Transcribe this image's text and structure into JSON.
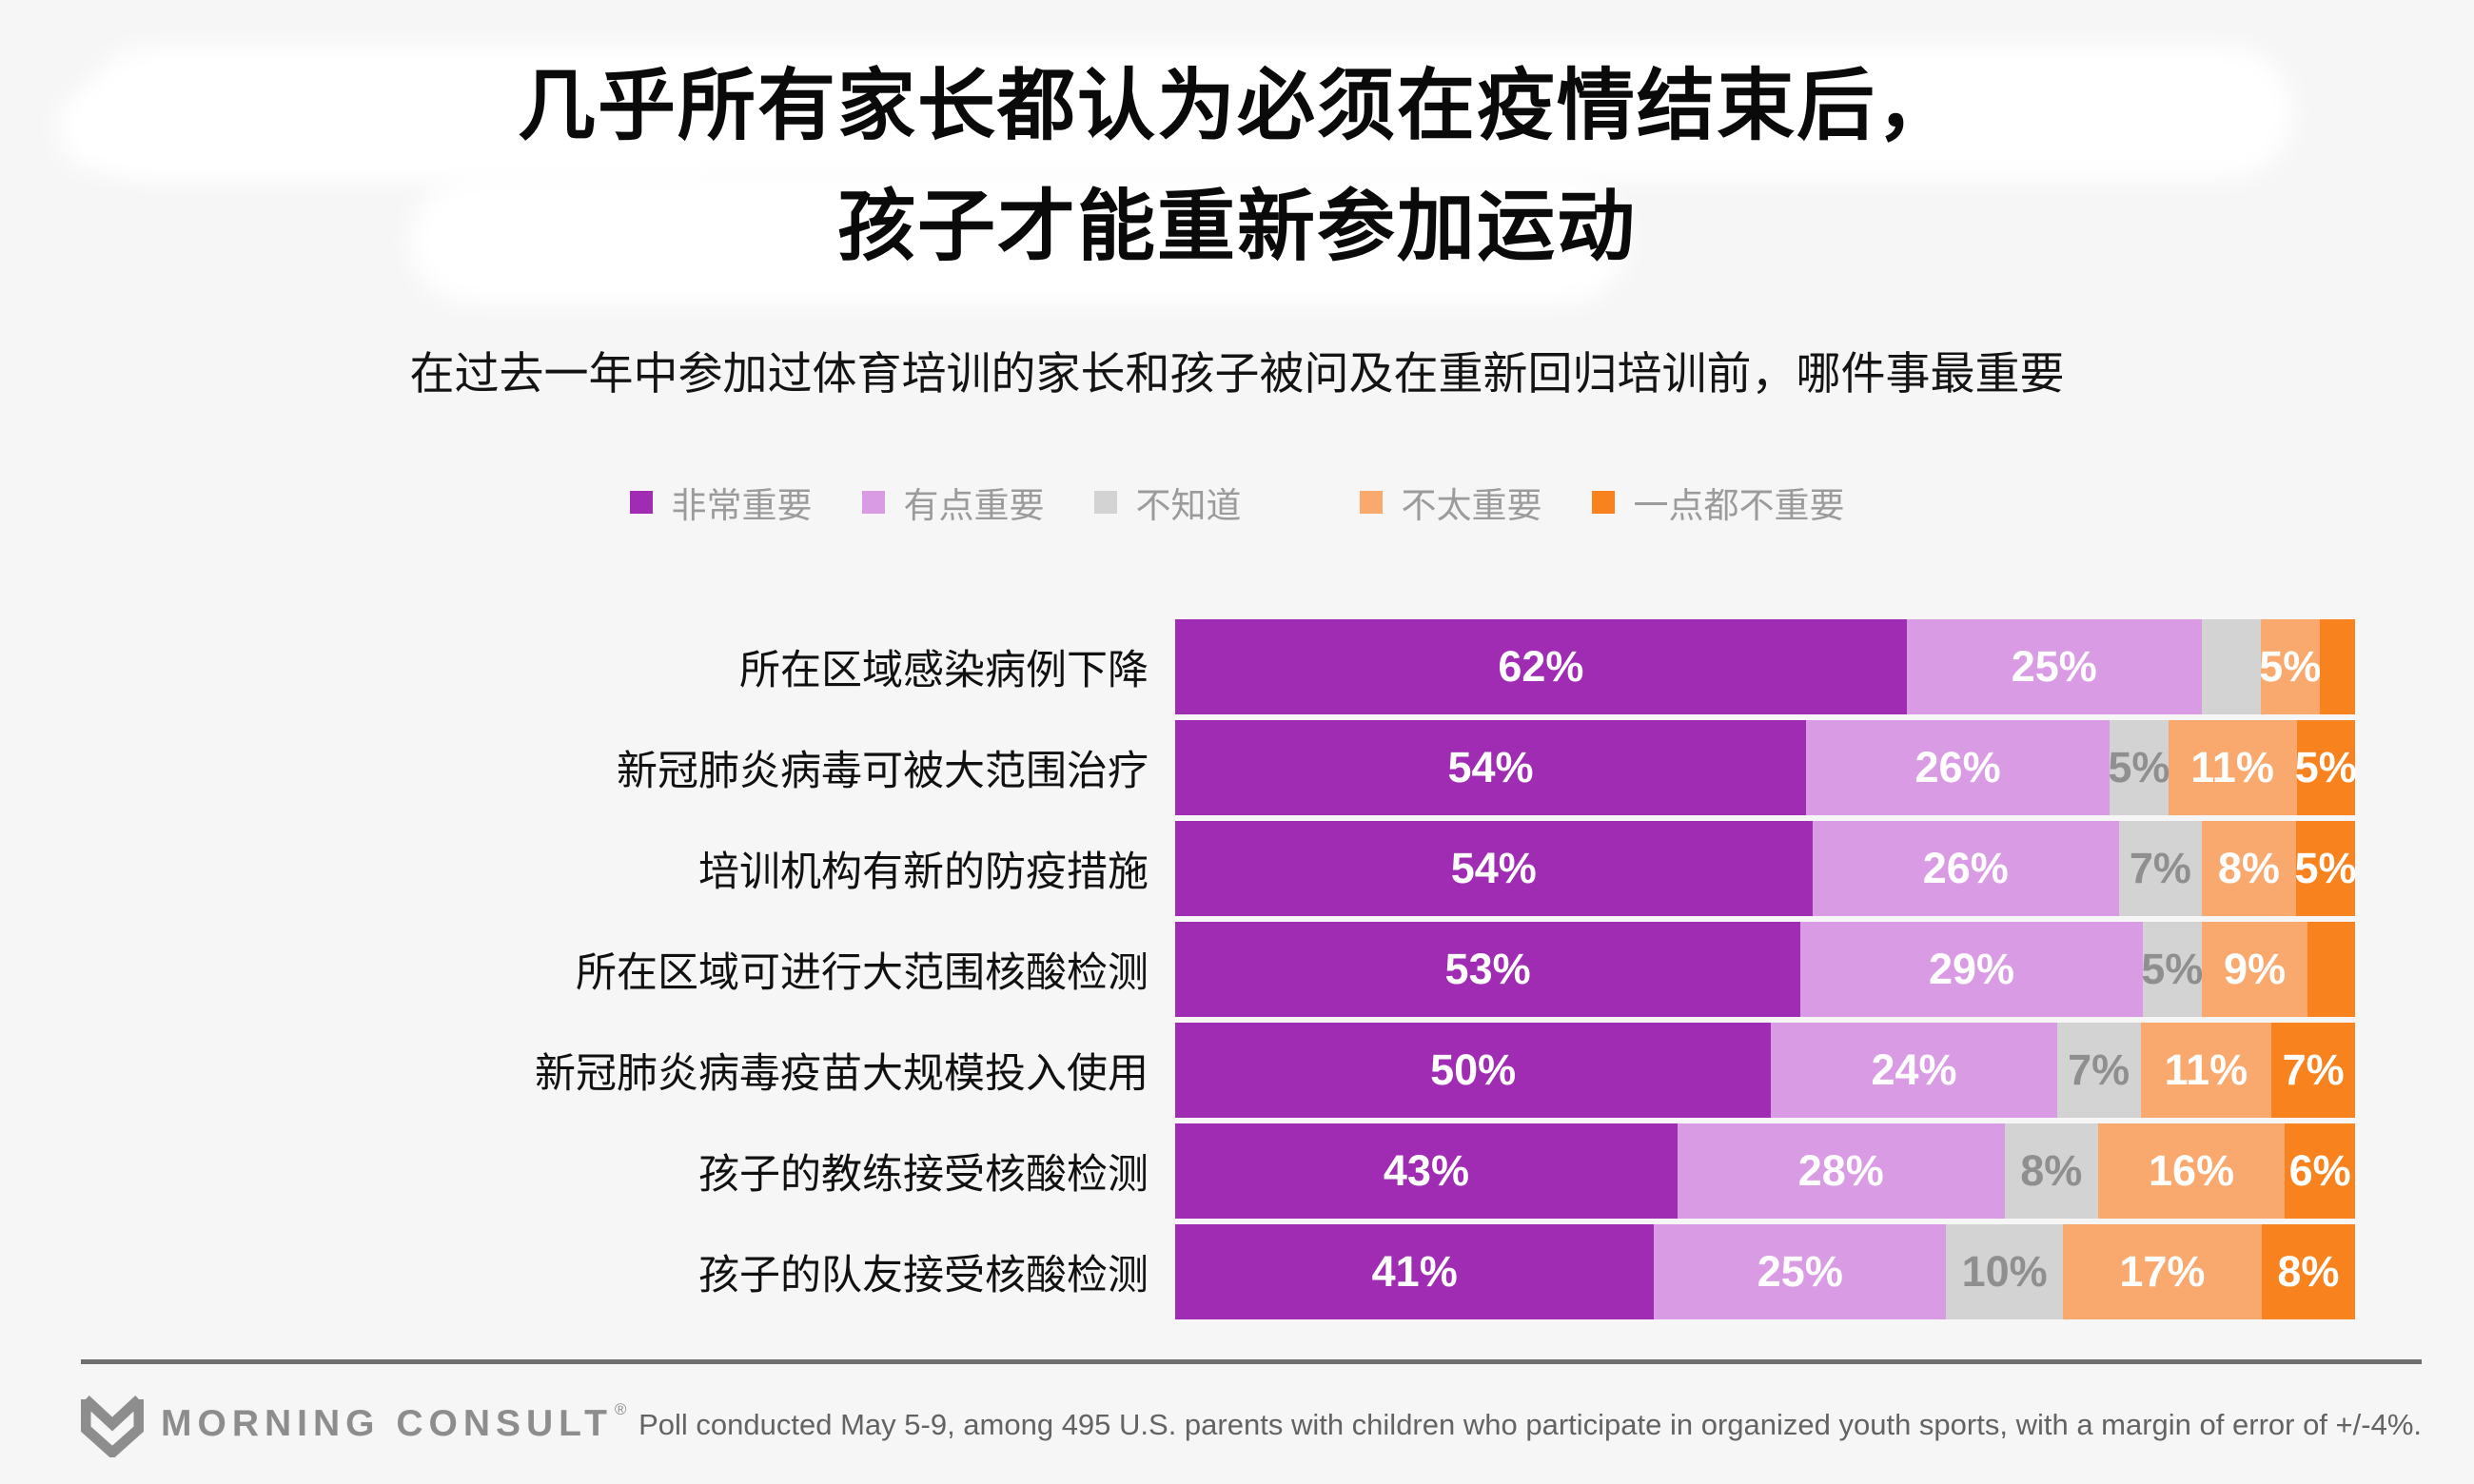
{
  "page": {
    "background": "#f6f6f6"
  },
  "header": {
    "title_line1": "几乎所有家长都认为必须在疫情结束后，",
    "title_line2": "孩子才能重新参加运动",
    "subtitle": "在过去一年中参加过体育培训的家长和孩子被问及在重新回归培训前，哪件事最重要"
  },
  "chart_data": {
    "type": "bar",
    "stacked": true,
    "orientation": "horizontal",
    "unit": "%",
    "xlim": [
      0,
      100
    ],
    "grid": false,
    "legend_position": "top",
    "categories": [
      "所在区域感染病例下降",
      "新冠肺炎病毒可被大范围治疗",
      "培训机构有新的防疫措施",
      "所在区域可进行大范围核酸检测",
      "新冠肺炎病毒疫苗大规模投入使用",
      "孩子的教练接受核酸检测",
      "孩子的队友接受核酸检测"
    ],
    "series": [
      {
        "name": "非常重要",
        "color": "#A02CB4",
        "text_color": "#ffffff",
        "values": [
          62,
          54,
          54,
          53,
          50,
          43,
          41
        ],
        "labels": [
          "62%",
          "54%",
          "54%",
          "53%",
          "50%",
          "43%",
          "41%"
        ]
      },
      {
        "name": "有点重要",
        "color": "#D99CE4",
        "text_color": "#ffffff",
        "values": [
          25,
          26,
          26,
          29,
          24,
          28,
          25
        ],
        "labels": [
          "25%",
          "26%",
          "26%",
          "29%",
          "24%",
          "28%",
          "25%"
        ]
      },
      {
        "name": "不知道",
        "color": "#D3D3D3",
        "text_color": "#8f8f8f",
        "values": [
          5,
          5,
          7,
          5,
          7,
          8,
          10
        ],
        "labels": [
          "",
          "5%",
          "7%",
          "5%",
          "7%",
          "8%",
          "10%"
        ]
      },
      {
        "name": "不太重要",
        "color": "#FAA96E",
        "text_color": "#ffffff",
        "values": [
          5,
          11,
          8,
          9,
          11,
          16,
          17
        ],
        "labels": [
          "5%",
          "11%",
          "8%",
          "9%",
          "11%",
          "16%",
          "17%"
        ]
      },
      {
        "name": "一点都不重要",
        "color": "#F8821E",
        "text_color": "#ffffff",
        "values": [
          3,
          5,
          5,
          4,
          7,
          6,
          8
        ],
        "labels": [
          "",
          "5%",
          "5%",
          "",
          "7%",
          "6%",
          "8%"
        ]
      }
    ]
  },
  "footer": {
    "logo_text": "MORNING CONSULT",
    "logo_reg_mark": "®",
    "note": "Poll conducted May 5-9, among 495 U.S. parents with children who participate in organized youth sports, with a margin of error of +/-4%."
  }
}
